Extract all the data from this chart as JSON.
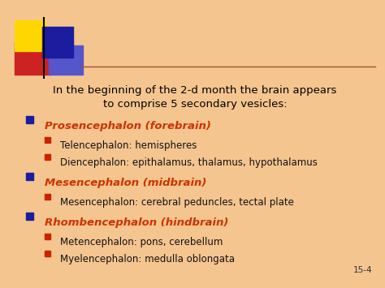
{
  "background_color": "#F5C590",
  "slide_number": "15-4",
  "intro_line1": "In the beginning of the 2-d month the brain appears",
  "intro_line2": "to comprise 5 secondary vesicles:",
  "sections": [
    {
      "main_bullet_color": "#1C1C9E",
      "main_text": "Prosencephalon (forebrain)",
      "main_text_color": "#CC3300",
      "sub_items": [
        "Telencephalon: hemispheres",
        "Diencephalon: epithalamus, thalamus, hypothalamus"
      ]
    },
    {
      "main_bullet_color": "#1C1C9E",
      "main_text": "Mesencephalon (midbrain)",
      "main_text_color": "#CC3300",
      "sub_items": [
        "Mesencephalon: cerebral peduncles, tectal plate"
      ]
    },
    {
      "main_bullet_color": "#1C1C9E",
      "main_text": "Rhombencephalon (hindbrain)",
      "main_text_color": "#CC3300",
      "sub_items": [
        "Metencephalon: pons, cerebellum",
        "Myelencephalon: medulla oblongata"
      ]
    }
  ],
  "sub_bullet_color": "#CC2200",
  "sub_text_color": "#111111",
  "header_line_color": "#A0522D",
  "logo": {
    "yellow": "#FFD700",
    "red": "#CC2222",
    "blue_dark": "#1C1C9E",
    "blue_light": "#5555CC"
  },
  "figsize": [
    4.74,
    3.55
  ],
  "dpi": 100
}
